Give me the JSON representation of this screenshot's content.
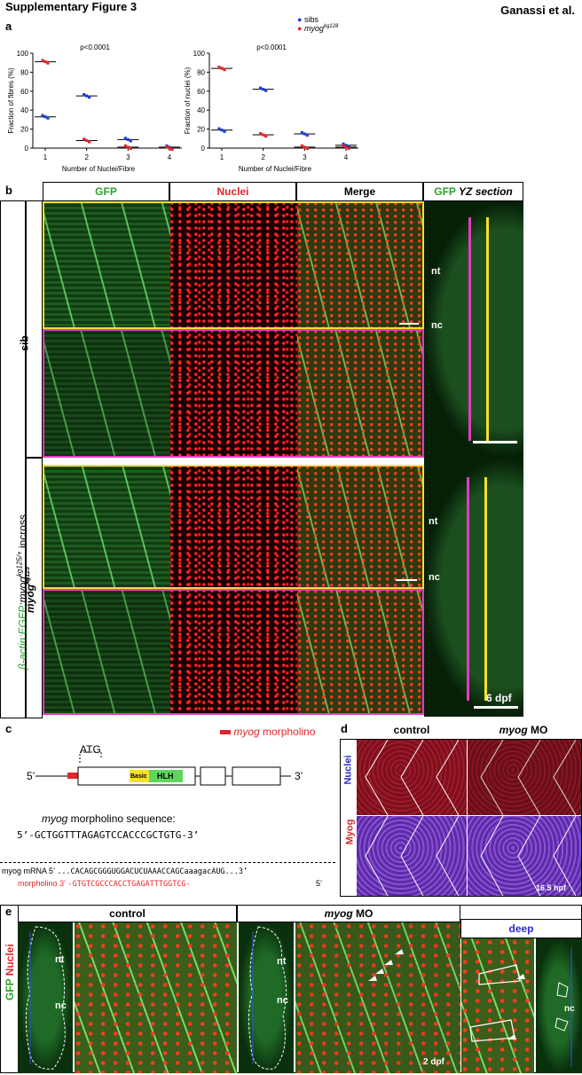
{
  "header": {
    "title": "Supplementary Figure 3",
    "authors": "Ganassi et al."
  },
  "panel_a": {
    "label": "a",
    "legend": {
      "sibs": "sibs",
      "mutant_prefix": "myog",
      "mutant_sup": "kg128",
      "sibs_color": "#1f3fd0",
      "mutant_color": "#e0262a"
    },
    "chart_data": [
      {
        "type": "scatter",
        "p_value": "p<0.0001",
        "ylabel": "Fraction of fibres (%)",
        "xlabel": "Number of Nuclei/Fibre",
        "categories": [
          "1",
          "2",
          "3",
          "4"
        ],
        "y_ticks": [
          "0",
          "20",
          "40",
          "60",
          "80",
          "100"
        ],
        "ylim": [
          0,
          100
        ],
        "series": [
          {
            "name": "sibs",
            "means": [
              33,
              55,
              9,
              1
            ]
          },
          {
            "name": "myog",
            "means": [
              91,
              8,
              1,
              0
            ]
          }
        ]
      },
      {
        "type": "scatter",
        "p_value": "p<0.0001",
        "ylabel": "Fraction of nuclei (%)",
        "xlabel": "Number of Nuclei/Fibre",
        "categories": [
          "1",
          "2",
          "3",
          "4"
        ],
        "y_ticks": [
          "0",
          "20",
          "40",
          "60",
          "80",
          "100"
        ],
        "ylim": [
          0,
          100
        ],
        "series": [
          {
            "name": "sibs",
            "means": [
              19,
              62,
              15,
              3
            ]
          },
          {
            "name": "myog",
            "means": [
              84,
              14,
              1,
              1
            ]
          }
        ]
      }
    ]
  },
  "panel_b": {
    "label": "b",
    "columns": [
      "GFP",
      "Nuclei",
      "Merge"
    ],
    "yz_head_gfp": "GFP",
    "yz_head_rest": "YZ section",
    "row_sib": "sib",
    "row_mut": "myog",
    "row_mut_sup": "kg125",
    "side_label_green": "β-actin:EGFP",
    "side_label_rest": ";myog",
    "side_label_sup": "kg125/+",
    "side_label_end": " incross",
    "nt": "nt",
    "nc": "nc",
    "stage": "6 dpf",
    "colors": {
      "gfp": "#28a428",
      "nuclei": "#e0262a",
      "yellow": "#f5e02c",
      "magenta": "#e23cc3"
    }
  },
  "panel_c": {
    "label": "c",
    "legend_gene": "myog",
    "legend_rest": " morpholino",
    "atg": "ATG",
    "five": "5’",
    "three": "3’",
    "basic": "Basic",
    "hlh": "HLH",
    "seq_title_gene": "myog",
    "seq_title_rest": " morpholino sequence:",
    "seq": "5’-GCTGGTTTAGAGTCCACCCGCTGTG-3’",
    "mrna_label": "myog mRNA 5’",
    "mrna_seq": "...CACAGCGGGUGGACUCUAAACCAGCaaagacAUG...3’",
    "mo_label": "morpholino 3’",
    "mo_seq": "-GTGTCGCCCACCTGAGATTTGGTCG-",
    "mo_end": "5’"
  },
  "panel_d": {
    "label": "d",
    "cols": [
      "control"
    ],
    "col2_gene": "myog",
    "col2_rest": " MO",
    "side_nuclei": "Nuclei",
    "side_myog": "Myog",
    "stage": "16.5 hpf"
  },
  "panel_e": {
    "label": "e",
    "control": "control",
    "mo_gene": "myog",
    "mo_rest": " MO",
    "deep": "deep",
    "side_gfp": "GFP",
    "side_nuclei": "Nuclei",
    "nt": "nt",
    "nc": "nc",
    "stage": "2 dpf"
  }
}
